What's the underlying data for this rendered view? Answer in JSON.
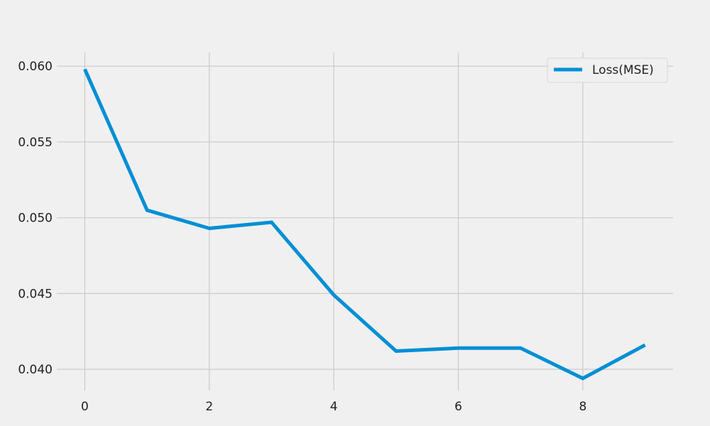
{
  "chart_data": {
    "type": "line",
    "title": "",
    "xlabel": "",
    "ylabel": "",
    "xlim": [
      -0.45,
      9.45
    ],
    "ylim": [
      0.0386,
      0.0609
    ],
    "x_ticks": [
      0,
      2,
      4,
      6,
      8
    ],
    "x_tick_labels": [
      "0",
      "2",
      "4",
      "6",
      "8"
    ],
    "y_ticks": [
      0.04,
      0.045,
      0.05,
      0.055,
      0.06
    ],
    "y_tick_labels": [
      "0.040",
      "0.045",
      "0.050",
      "0.055",
      "0.060"
    ],
    "grid": true,
    "legend_position": "top-right",
    "series": [
      {
        "name": "Loss(MSE)",
        "color": "#008fd5",
        "x": [
          0,
          1,
          2,
          3,
          4,
          5,
          6,
          7,
          8,
          9
        ],
        "y": [
          0.0598,
          0.0505,
          0.0493,
          0.0497,
          0.0449,
          0.0412,
          0.0414,
          0.0414,
          0.0394,
          0.0416
        ]
      }
    ]
  },
  "colors": {
    "background": "#f0f0f0",
    "grid": "#cbcbcb",
    "text": "#222222"
  }
}
